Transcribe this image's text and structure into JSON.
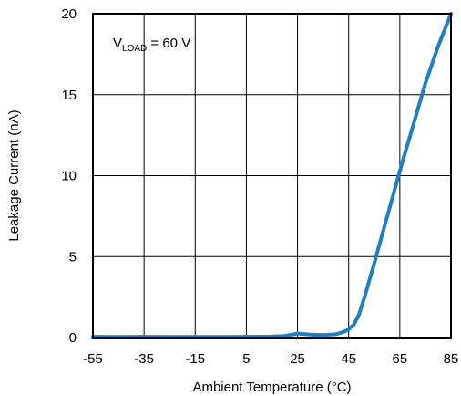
{
  "chart_data": {
    "type": "line",
    "title": "",
    "xlabel": "Ambient Temperature (°C)",
    "ylabel": "Leakage Current (nA)",
    "xlim": [
      -55,
      85
    ],
    "ylim": [
      0,
      20
    ],
    "x_ticks": [
      -55,
      -35,
      -15,
      5,
      25,
      45,
      65,
      85
    ],
    "y_ticks": [
      0,
      5,
      10,
      15,
      20
    ],
    "x_tick_labels": [
      "-55",
      "-35",
      "-15",
      "5",
      "25",
      "45",
      "65",
      "85"
    ],
    "y_tick_labels": [
      "0",
      "5",
      "10",
      "15",
      "20"
    ],
    "grid": true,
    "legend": "none",
    "annotation": {
      "prefix": "V",
      "subscript": "LOAD",
      "suffix": " = 60 V"
    },
    "series": [
      {
        "color": "#1f7fc1",
        "x": [
          -55,
          -45,
          -35,
          -25,
          -15,
          -5,
          5,
          15,
          20,
          25,
          30,
          35,
          40,
          43,
          45,
          47,
          49,
          51,
          53,
          55,
          58,
          61,
          65,
          70,
          75,
          80,
          85
        ],
        "y": [
          0.05,
          0.04,
          0.05,
          0.04,
          0.04,
          0.04,
          0.05,
          0.06,
          0.1,
          0.25,
          0.18,
          0.15,
          0.2,
          0.35,
          0.5,
          0.8,
          1.4,
          2.4,
          3.5,
          4.6,
          6.3,
          8.0,
          10.3,
          13.0,
          15.7,
          18.0,
          20.0
        ]
      }
    ]
  }
}
